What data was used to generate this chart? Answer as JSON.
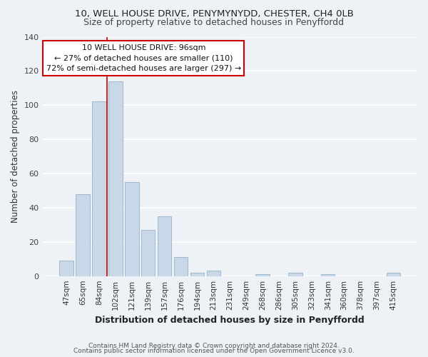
{
  "title1": "10, WELL HOUSE DRIVE, PENYMYNYDD, CHESTER, CH4 0LB",
  "title2": "Size of property relative to detached houses in Penyffordd",
  "xlabel": "Distribution of detached houses by size in Penyffordd",
  "ylabel": "Number of detached properties",
  "footer1": "Contains HM Land Registry data © Crown copyright and database right 2024.",
  "footer2": "Contains public sector information licensed under the Open Government Licence v3.0.",
  "bar_labels": [
    "47sqm",
    "65sqm",
    "84sqm",
    "102sqm",
    "121sqm",
    "139sqm",
    "157sqm",
    "176sqm",
    "194sqm",
    "213sqm",
    "231sqm",
    "249sqm",
    "268sqm",
    "286sqm",
    "305sqm",
    "323sqm",
    "341sqm",
    "360sqm",
    "378sqm",
    "397sqm",
    "415sqm"
  ],
  "bar_values": [
    9,
    48,
    102,
    114,
    55,
    27,
    35,
    11,
    2,
    3,
    0,
    0,
    1,
    0,
    2,
    0,
    1,
    0,
    0,
    0,
    2
  ],
  "bar_color": "#c8d8e8",
  "bar_edge_color": "#a0b8cc",
  "highlight_line_color": "#cc0000",
  "annotation_title": "10 WELL HOUSE DRIVE: 96sqm",
  "annotation_line2": "← 27% of detached houses are smaller (110)",
  "annotation_line3": "72% of semi-detached houses are larger (297) →",
  "annotation_box_color": "#ffffff",
  "annotation_box_edge": "#cc0000",
  "ylim": [
    0,
    140
  ],
  "yticks": [
    0,
    20,
    40,
    60,
    80,
    100,
    120,
    140
  ],
  "bg_color": "#eef2f6"
}
